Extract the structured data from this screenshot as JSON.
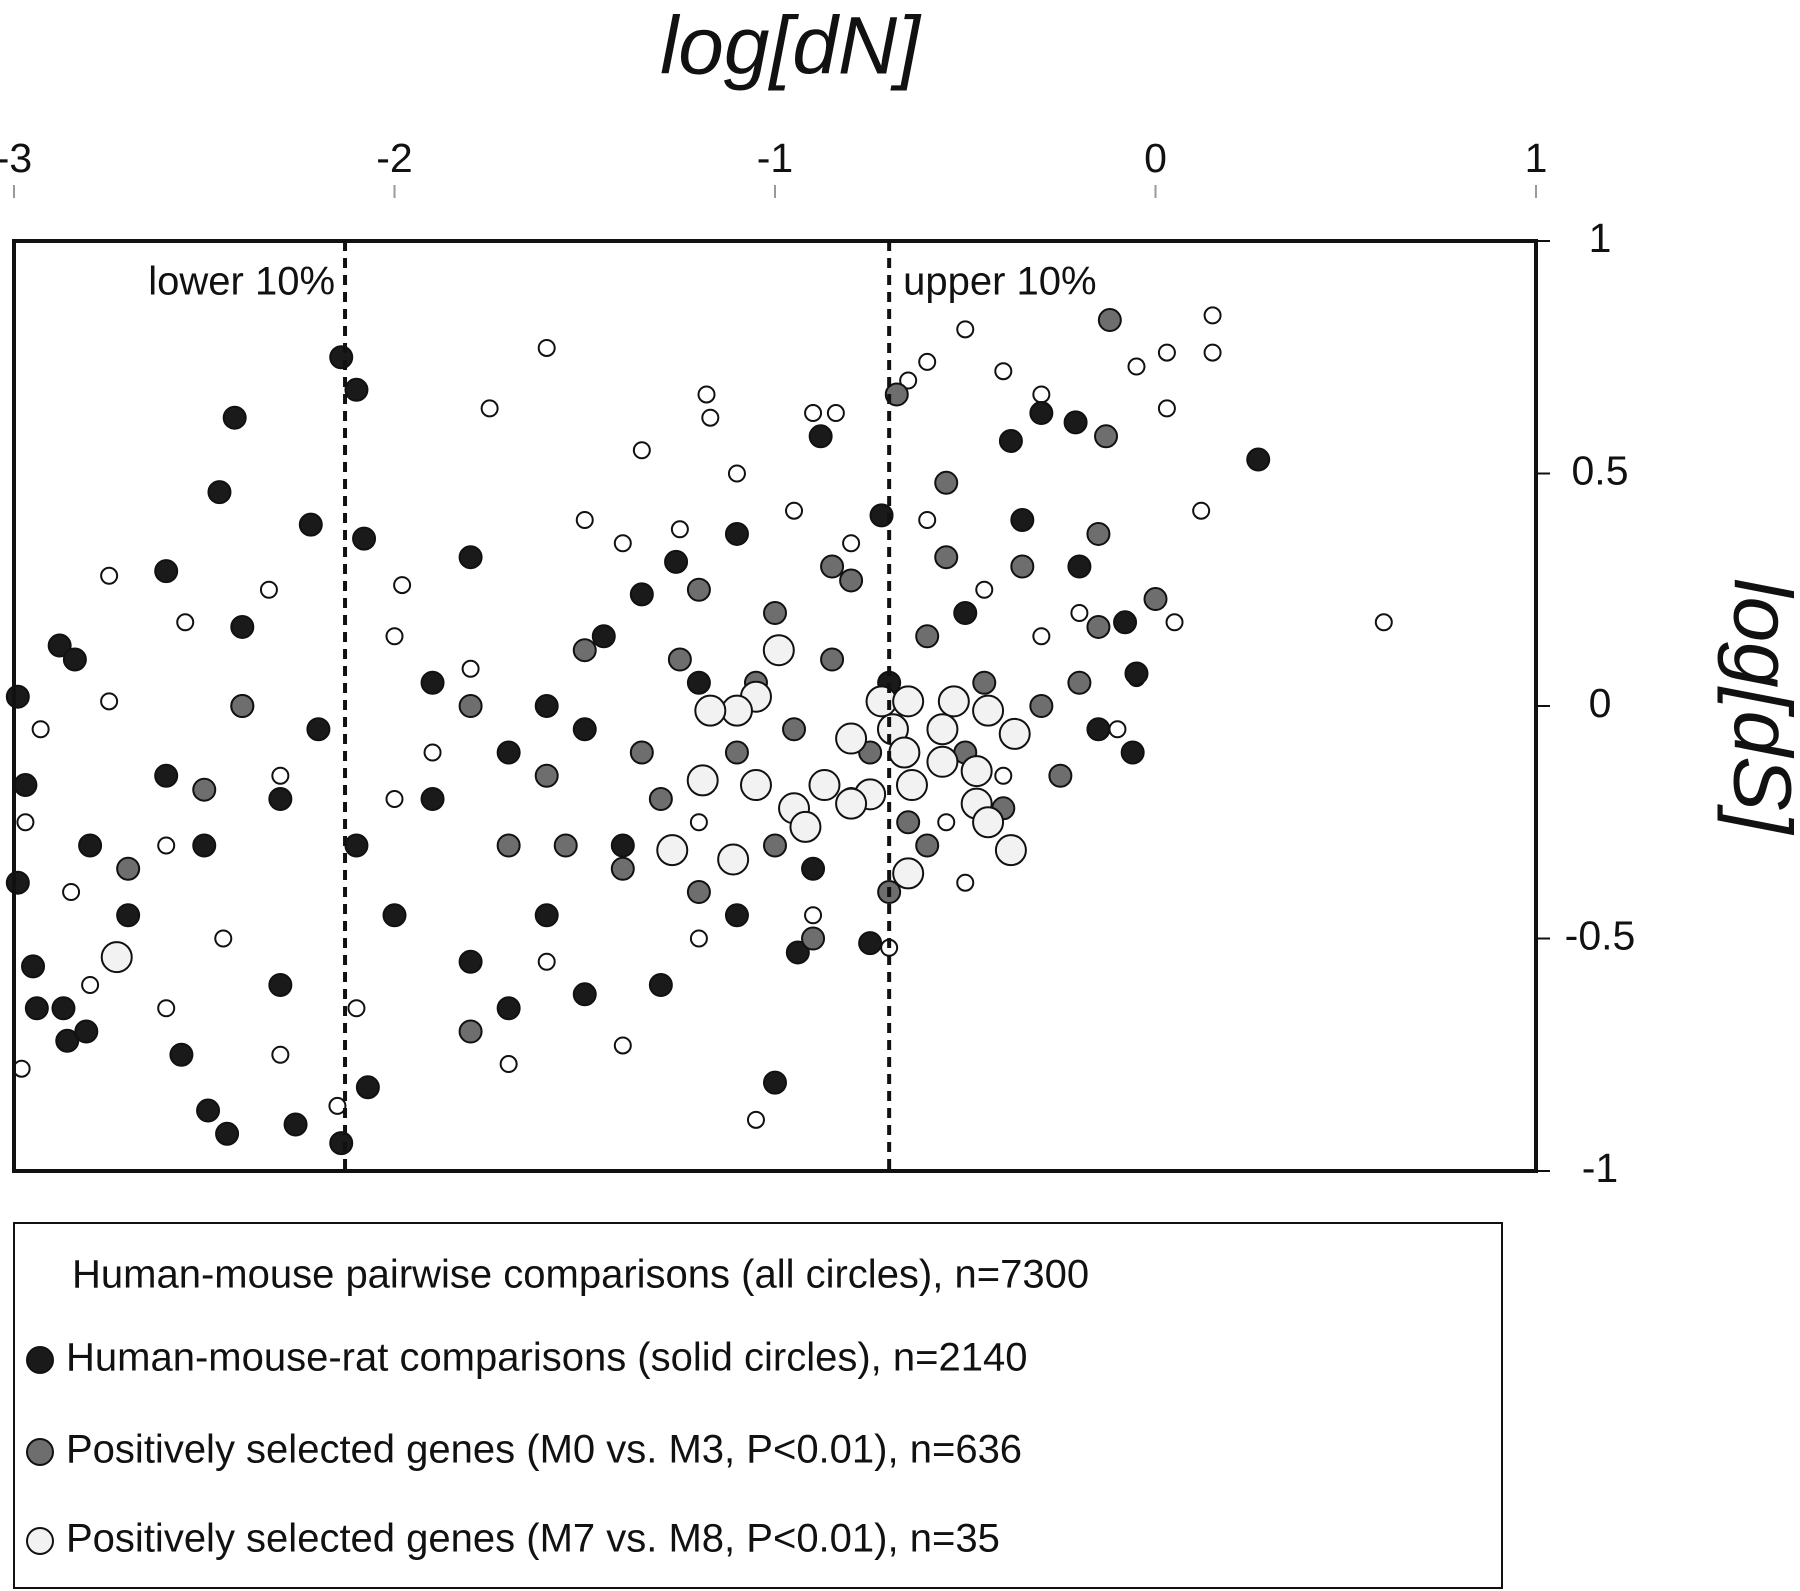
{
  "chart_data": {
    "type": "scatter",
    "x_label": "log[dN]",
    "y_label": "log[dS]",
    "xlim": [
      -3,
      1
    ],
    "xticks": [
      -3,
      -2,
      -1,
      0,
      1
    ],
    "ylim": [
      -1,
      1
    ],
    "yticks": [
      1,
      0.5,
      0,
      -0.5,
      -1
    ],
    "annotations": [
      {
        "text": "lower 10%",
        "x": -2.13
      },
      {
        "text": "upper 10%",
        "x": -0.7
      }
    ],
    "series": [
      {
        "name": "Human-mouse pairwise comparisons (all circles), n=7300",
        "color": "#ffffff",
        "x": [
          -2.98,
          -2.97,
          -2.93,
          -2.75,
          -2.75,
          -2.55,
          -2.33,
          -1.98,
          -1.6,
          -1.75,
          -1.18,
          -1.17,
          -0.9,
          -0.84,
          -0.65,
          -0.6,
          -0.5,
          -0.4,
          -0.3,
          -0.05,
          0.03,
          0.15,
          0.15,
          0.03,
          0.12,
          0.6,
          0.05,
          -0.05,
          -0.1,
          -1.05,
          -1.2,
          -2.15,
          -2.3,
          -1.7,
          -1.4,
          -1.3,
          -0.7,
          -0.9,
          -2.6,
          -2.8,
          -2.85,
          -2.3,
          -1.8,
          -1.9,
          -1.4,
          -1.35,
          -1.25,
          -1.1,
          -0.95,
          -0.8,
          -0.6,
          -0.45,
          -0.3,
          -0.2,
          -0.4,
          -0.5,
          -0.55,
          -2.1,
          -2.45,
          -1.6,
          -1.2,
          -2.0,
          -2.6,
          -2.0,
          -1.5
        ],
        "values": [
          -0.78,
          -0.25,
          -0.05,
          0.28,
          0.01,
          0.18,
          0.25,
          0.26,
          0.77,
          0.64,
          0.67,
          0.62,
          0.63,
          0.63,
          0.7,
          0.74,
          0.81,
          0.72,
          0.67,
          0.73,
          0.76,
          0.76,
          0.84,
          0.64,
          0.42,
          0.18,
          0.18,
          0.06,
          -0.05,
          -0.89,
          -0.5,
          -0.86,
          -0.75,
          -0.77,
          -0.73,
          -0.6,
          -0.52,
          -0.45,
          -0.65,
          -0.6,
          -0.4,
          -0.15,
          0.08,
          -0.1,
          0.35,
          0.55,
          0.38,
          0.5,
          0.42,
          0.35,
          0.4,
          0.25,
          0.15,
          0.2,
          -0.15,
          -0.38,
          -0.25,
          -0.65,
          -0.5,
          -0.55,
          -0.25,
          -0.2,
          -0.3,
          0.15,
          0.4
        ]
      },
      {
        "name": "Human-mouse-rat comparisons (solid circles), n=2140",
        "color": "#1a1a1a",
        "x": [
          -2.99,
          -2.97,
          -2.99,
          -2.94,
          -2.88,
          -2.84,
          -2.6,
          -2.46,
          -2.42,
          -2.22,
          -2.14,
          -2.1,
          -2.08,
          -1.8,
          -1.35,
          -1.26,
          -1.1,
          -0.88,
          -0.72,
          -0.3,
          -0.21,
          -0.38,
          -0.35,
          0.27,
          -0.08,
          -2.95,
          -2.87,
          -2.86,
          -2.81,
          -2.49,
          -2.44,
          -2.26,
          -2.14,
          -2.07,
          -1.0,
          -0.75,
          -0.94,
          -0.06,
          -0.05,
          -2.4,
          -2.56,
          -2.3,
          -2.7,
          -2.5,
          -2.3,
          -2.1,
          -1.9,
          -1.7,
          -1.5,
          -1.4,
          -1.6,
          -1.8,
          -2.0,
          -2.2,
          -1.3,
          -1.1,
          -0.9,
          -0.7,
          -0.5,
          -0.2,
          -0.15,
          -1.2,
          -1.45,
          -1.6,
          -2.6,
          -2.8,
          -1.7,
          -1.5,
          -2.4,
          -1.9
        ],
        "values": [
          0.02,
          -0.17,
          -0.38,
          -0.65,
          0.13,
          0.1,
          0.29,
          0.46,
          0.62,
          0.39,
          0.75,
          0.68,
          0.36,
          0.32,
          0.24,
          0.31,
          0.37,
          0.58,
          0.41,
          0.63,
          0.61,
          0.57,
          0.4,
          0.53,
          0.18,
          -0.56,
          -0.65,
          -0.72,
          -0.7,
          -0.87,
          -0.92,
          -0.9,
          -0.94,
          -0.82,
          -0.81,
          -0.51,
          -0.53,
          -0.1,
          0.07,
          0.17,
          -0.75,
          -0.6,
          -0.45,
          -0.3,
          -0.2,
          -0.3,
          -0.2,
          -0.1,
          -0.05,
          -0.3,
          -0.45,
          -0.55,
          -0.45,
          -0.05,
          -0.6,
          -0.45,
          -0.35,
          0.05,
          0.2,
          0.3,
          -0.05,
          0.05,
          0.15,
          0.0,
          -0.15,
          -0.3,
          -0.65,
          -0.62,
          0.0,
          0.05
        ]
      },
      {
        "name": "Positively selected genes (M0 vs. M3, P<0.01), n=636",
        "color": "#6e6e6e",
        "x": [
          -0.12,
          -0.13,
          -0.68,
          -0.55,
          -0.15,
          0.0,
          -0.15,
          -0.35,
          -0.55,
          -0.8,
          -1.0,
          -1.2,
          -1.5,
          -1.8,
          -2.4,
          -2.5,
          -2.7,
          -1.8,
          -0.6,
          -0.4,
          -0.5,
          -0.3,
          -0.2,
          -0.7,
          -0.9,
          -1.1,
          -1.3,
          -1.05,
          -0.85,
          -0.6,
          -1.4,
          -1.2,
          -0.8,
          -1.6,
          -1.0,
          -0.95,
          -0.75,
          -1.25,
          -0.65,
          -0.45,
          -1.55,
          -1.35,
          -0.25,
          -0.85,
          -1.7
        ],
        "values": [
          0.83,
          0.58,
          0.67,
          0.48,
          0.37,
          0.23,
          0.17,
          0.3,
          0.32,
          0.27,
          0.2,
          0.25,
          0.12,
          0.0,
          0.0,
          -0.18,
          -0.35,
          -0.7,
          -0.3,
          -0.22,
          -0.1,
          0.0,
          0.05,
          -0.4,
          -0.5,
          -0.1,
          -0.2,
          0.05,
          0.1,
          0.15,
          -0.35,
          -0.4,
          -0.2,
          -0.15,
          -0.3,
          -0.05,
          -0.1,
          0.1,
          -0.25,
          0.05,
          -0.3,
          -0.1,
          -0.15,
          0.3,
          -0.3
        ]
      },
      {
        "name": "Positively selected genes (M7 vs. M8, P<0.01), n=35",
        "color": "#f2f2f2",
        "x": [
          -2.73,
          -0.99,
          -1.05,
          -1.1,
          -1.17,
          -1.19,
          -1.05,
          -1.27,
          -1.11,
          -0.72,
          -0.65,
          -0.53,
          -0.69,
          -0.66,
          -0.56,
          -0.44,
          -0.37,
          -0.47,
          -0.56,
          -0.8,
          -0.87,
          -0.95,
          -0.92,
          -0.75,
          -0.64,
          -0.47,
          -0.44,
          -0.38,
          -0.65,
          -0.8
        ],
        "values": [
          -0.54,
          0.12,
          0.02,
          -0.01,
          -0.01,
          -0.16,
          -0.17,
          -0.31,
          -0.33,
          0.01,
          0.01,
          0.01,
          -0.05,
          -0.1,
          -0.05,
          -0.01,
          -0.06,
          -0.14,
          -0.12,
          -0.07,
          -0.17,
          -0.22,
          -0.26,
          -0.19,
          -0.17,
          -0.21,
          -0.25,
          -0.31,
          -0.36,
          -0.21
        ]
      }
    ]
  }
}
